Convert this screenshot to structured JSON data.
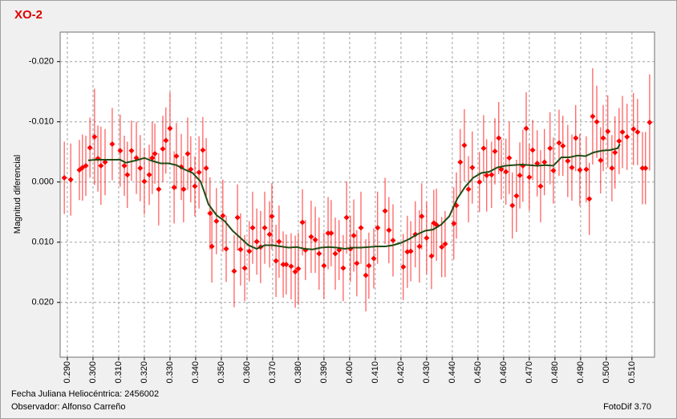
{
  "chart_data": {
    "type": "scatter",
    "title": "XO-2",
    "y_label": "Magnitud diferencial",
    "annotations": [
      "Fecha Juliana Heliocéntrica: 2456002",
      "Observador: Alfonso Carreño",
      "FotoDif 3.70"
    ],
    "xlim": [
      0.2872,
      0.5188
    ],
    "ylim": [
      -0.0249,
      0.0291
    ],
    "y_inverted": true,
    "grid": true,
    "xticks": [
      {
        "value": 0.29,
        "label": "0.290"
      },
      {
        "value": 0.3,
        "label": "0.300"
      },
      {
        "value": 0.31,
        "label": "0.310"
      },
      {
        "value": 0.32,
        "label": "0.320"
      },
      {
        "value": 0.33,
        "label": "0.330"
      },
      {
        "value": 0.34,
        "label": "0.340"
      },
      {
        "value": 0.35,
        "label": "0.350"
      },
      {
        "value": 0.36,
        "label": "0.360"
      },
      {
        "value": 0.37,
        "label": "0.370"
      },
      {
        "value": 0.38,
        "label": "0.380"
      },
      {
        "value": 0.39,
        "label": "0.390"
      },
      {
        "value": 0.4,
        "label": "0.400"
      },
      {
        "value": 0.41,
        "label": "0.410"
      },
      {
        "value": 0.42,
        "label": "0.420"
      },
      {
        "value": 0.43,
        "label": "0.430"
      },
      {
        "value": 0.44,
        "label": "0.440"
      },
      {
        "value": 0.45,
        "label": "0.450"
      },
      {
        "value": 0.46,
        "label": "0.460"
      },
      {
        "value": 0.47,
        "label": "0.470"
      },
      {
        "value": 0.48,
        "label": "0.480"
      },
      {
        "value": 0.49,
        "label": "0.490"
      },
      {
        "value": 0.5,
        "label": "0.500"
      },
      {
        "value": 0.51,
        "label": "0.510"
      }
    ],
    "yticks": [
      {
        "value": -0.02,
        "label": "-0.020"
      },
      {
        "value": -0.01,
        "label": "-0.010"
      },
      {
        "value": 0,
        "label": "0.000"
      },
      {
        "value": 0.01,
        "label": "0.010"
      },
      {
        "value": 0.02,
        "label": "0.020"
      }
    ],
    "series": [
      {
        "kind": "points",
        "color": "#ff0000",
        "x": [
          0.2888,
          0.2913,
          0.2947,
          0.2959,
          0.2972,
          0.2988,
          0.3006,
          0.3019,
          0.3031,
          0.3047,
          0.3075,
          0.3106,
          0.3122,
          0.3134,
          0.315,
          0.3169,
          0.3184,
          0.32,
          0.3219,
          0.3231,
          0.3241,
          0.3256,
          0.3272,
          0.3284,
          0.33,
          0.3316,
          0.3325,
          0.3344,
          0.3353,
          0.3369,
          0.3381,
          0.3397,
          0.3413,
          0.3428,
          0.3441,
          0.3456,
          0.3463,
          0.3481,
          0.3506,
          0.3519,
          0.355,
          0.3563,
          0.3575,
          0.3591,
          0.3609,
          0.3622,
          0.3638,
          0.3653,
          0.3669,
          0.3688,
          0.3697,
          0.3713,
          0.3725,
          0.3741,
          0.3753,
          0.3772,
          0.3788,
          0.38,
          0.3816,
          0.3828,
          0.385,
          0.3866,
          0.3881,
          0.39,
          0.3916,
          0.3928,
          0.3944,
          0.3959,
          0.3975,
          0.3988,
          0.4003,
          0.4016,
          0.4028,
          0.4044,
          0.4063,
          0.4075,
          0.4094,
          0.4109,
          0.4138,
          0.4153,
          0.4169,
          0.4209,
          0.4225,
          0.4238,
          0.4256,
          0.4272,
          0.4281,
          0.43,
          0.4319,
          0.4328,
          0.4338,
          0.4359,
          0.4372,
          0.4406,
          0.4416,
          0.4431,
          0.4447,
          0.4463,
          0.4478,
          0.4506,
          0.4522,
          0.4534,
          0.4553,
          0.4566,
          0.4581,
          0.4591,
          0.4609,
          0.4622,
          0.4634,
          0.465,
          0.4663,
          0.4675,
          0.4688,
          0.47,
          0.4713,
          0.4731,
          0.4744,
          0.4759,
          0.4781,
          0.4794,
          0.4816,
          0.4831,
          0.485,
          0.4866,
          0.4881,
          0.4897,
          0.4922,
          0.4934,
          0.4947,
          0.4963,
          0.4978,
          0.4988,
          0.5006,
          0.5022,
          0.5034,
          0.505,
          0.5063,
          0.5081,
          0.5106,
          0.5122,
          0.5141,
          0.5153,
          0.5169
        ],
        "values": [
          -0.0007,
          -0.0004,
          -0.002,
          -0.0024,
          -0.0027,
          -0.0057,
          -0.0075,
          -0.0039,
          -0.0027,
          -0.0033,
          -0.0063,
          -0.0052,
          -0.0027,
          -0.0012,
          -0.0052,
          -0.004,
          -0.0023,
          -0.0001,
          -0.0012,
          -0.004,
          -0.0047,
          0.0012,
          -0.0055,
          -0.0069,
          -0.0089,
          0.0009,
          -0.0043,
          -0.0025,
          0.0012,
          -0.0047,
          -0.0021,
          0.0007,
          -0.0016,
          -0.0053,
          -0.0023,
          0.0052,
          0.0107,
          0.0065,
          0.0056,
          0.0111,
          0.0148,
          0.0059,
          0.0112,
          0.0143,
          0.0115,
          0.0076,
          0.0099,
          0.0108,
          0.0076,
          0.0087,
          0.0057,
          0.0131,
          0.0099,
          0.0137,
          0.0137,
          0.014,
          0.0149,
          0.0144,
          0.0067,
          0.0113,
          0.0091,
          0.0096,
          0.0119,
          0.0139,
          0.0085,
          0.0085,
          0.0119,
          0.0113,
          0.0143,
          0.0059,
          0.0111,
          0.0089,
          0.0135,
          0.0076,
          0.0155,
          0.0139,
          0.0127,
          0.0076,
          0.0048,
          0.008,
          0.0097,
          0.0141,
          0.0116,
          0.0115,
          0.0087,
          0.0107,
          0.0057,
          0.0093,
          0.0123,
          0.0068,
          0.0071,
          0.0108,
          0.0103,
          0.0069,
          0.0039,
          -0.0033,
          -0.0061,
          0.0012,
          -0.0024,
          0.0,
          -0.0056,
          -0.0011,
          -0.0012,
          -0.0051,
          -0.0073,
          -0.0021,
          -0.0017,
          -0.004,
          0.0039,
          0.0023,
          -0.0011,
          -0.0027,
          -0.0089,
          -0.0008,
          -0.0053,
          -0.0031,
          0.0007,
          -0.0033,
          -0.0056,
          -0.0019,
          -0.0065,
          -0.006,
          -0.0035,
          -0.0024,
          -0.0073,
          -0.002,
          -0.0021,
          0.0028,
          -0.0109,
          -0.01,
          -0.0036,
          -0.0073,
          -0.0084,
          -0.0023,
          -0.0049,
          -0.0068,
          -0.0083,
          -0.0075,
          -0.0088,
          -0.0083,
          -0.0023,
          -0.0023,
          -0.0099
        ],
        "errors": [
          0.006,
          0.006,
          0.005,
          0.0055,
          0.005,
          0.005,
          0.008,
          0.0055,
          0.0065,
          0.0055,
          0.006,
          0.006,
          0.005,
          0.0055,
          0.005,
          0.006,
          0.0055,
          0.0055,
          0.005,
          0.006,
          0.005,
          0.006,
          0.0055,
          0.0055,
          0.006,
          0.006,
          0.0055,
          0.0055,
          0.0055,
          0.006,
          0.0055,
          0.005,
          0.006,
          0.0055,
          0.005,
          0.006,
          0.006,
          0.0055,
          0.006,
          0.0055,
          0.006,
          0.0055,
          0.006,
          0.0055,
          0.005,
          0.006,
          0.0055,
          0.006,
          0.006,
          0.0055,
          0.0055,
          0.006,
          0.006,
          0.0055,
          0.005,
          0.0055,
          0.006,
          0.006,
          0.0055,
          0.005,
          0.006,
          0.0055,
          0.006,
          0.0055,
          0.006,
          0.0055,
          0.006,
          0.005,
          0.0055,
          0.006,
          0.0055,
          0.006,
          0.0055,
          0.006,
          0.006,
          0.0055,
          0.005,
          0.006,
          0.0055,
          0.0055,
          0.006,
          0.0055,
          0.006,
          0.005,
          0.0055,
          0.006,
          0.0055,
          0.006,
          0.0055,
          0.0055,
          0.006,
          0.005,
          0.0055,
          0.006,
          0.0055,
          0.0055,
          0.006,
          0.0055,
          0.006,
          0.005,
          0.0055,
          0.006,
          0.0055,
          0.0055,
          0.006,
          0.005,
          0.0055,
          0.006,
          0.0055,
          0.006,
          0.0055,
          0.006,
          0.006,
          0.0055,
          0.005,
          0.0055,
          0.006,
          0.0055,
          0.006,
          0.0055,
          0.0055,
          0.005,
          0.006,
          0.0055,
          0.0055,
          0.006,
          0.0055,
          0.006,
          0.008,
          0.006,
          0.0055,
          0.0055,
          0.006,
          0.0055,
          0.006,
          0.0055,
          0.006,
          0.0055,
          0.006,
          0.0055,
          0.006,
          0.006,
          0.008
        ]
      },
      {
        "kind": "line",
        "color": "#1e4d14",
        "x": [
          0.2981,
          0.3013,
          0.3044,
          0.3106,
          0.3128,
          0.3169,
          0.32,
          0.3231,
          0.3263,
          0.3294,
          0.3325,
          0.3356,
          0.3388,
          0.3419,
          0.3434,
          0.345,
          0.3481,
          0.3513,
          0.3544,
          0.3575,
          0.3606,
          0.3638,
          0.3669,
          0.37,
          0.3731,
          0.3763,
          0.3794,
          0.3825,
          0.3856,
          0.3888,
          0.3919,
          0.395,
          0.3981,
          0.4013,
          0.4044,
          0.4075,
          0.4106,
          0.4138,
          0.4169,
          0.42,
          0.4231,
          0.4263,
          0.4294,
          0.4325,
          0.4356,
          0.4388,
          0.4419,
          0.445,
          0.4481,
          0.4513,
          0.4544,
          0.4575,
          0.4606,
          0.4638,
          0.4669,
          0.47,
          0.4731,
          0.4763,
          0.4794,
          0.4825,
          0.4856,
          0.4888,
          0.4919,
          0.495,
          0.4981,
          0.5013,
          0.5044,
          0.5053
        ],
        "values": [
          -0.0036,
          -0.0037,
          -0.0037,
          -0.0037,
          -0.0032,
          -0.0036,
          -0.004,
          -0.0035,
          -0.0031,
          -0.0031,
          -0.0028,
          -0.0021,
          -0.0015,
          -0.0001,
          0.0017,
          0.0037,
          0.0055,
          0.0065,
          0.0081,
          0.0093,
          0.0105,
          0.0111,
          0.0105,
          0.0105,
          0.0107,
          0.0109,
          0.0108,
          0.0111,
          0.0112,
          0.0109,
          0.0108,
          0.0109,
          0.0111,
          0.0109,
          0.0109,
          0.0108,
          0.0107,
          0.0107,
          0.0105,
          0.0101,
          0.0095,
          0.0087,
          0.0081,
          0.0079,
          0.0071,
          0.0057,
          0.0028,
          0.0008,
          -0.0007,
          -0.0015,
          -0.0017,
          -0.0024,
          -0.0027,
          -0.0028,
          -0.0029,
          -0.0028,
          -0.0027,
          -0.0028,
          -0.0027,
          -0.0041,
          -0.0041,
          -0.0044,
          -0.0043,
          -0.0049,
          -0.0052,
          -0.0053,
          -0.0056,
          -0.0063
        ]
      }
    ]
  }
}
